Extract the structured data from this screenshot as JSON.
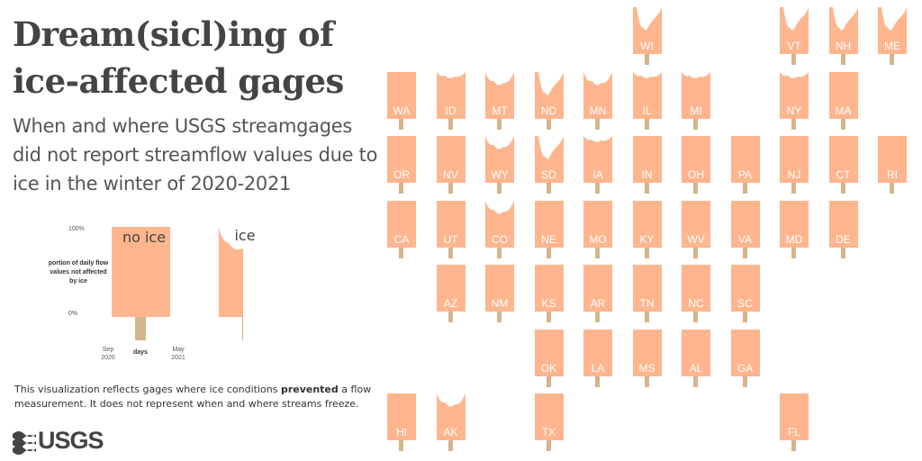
{
  "title": "Dream(sicl)ing of ice-affected gages",
  "subtitle": "When and where USGS streamgages did not report streamflow values due to ice in the winter of 2020-2021",
  "legend": {
    "no_ice_label": "no ice",
    "ice_label": "ice",
    "y_axis_label": "portion of daily flow values not affected by ice",
    "y_top": "100%",
    "y_bottom": "0%",
    "x_start": "Sep 2020",
    "x_mid": "days",
    "x_end": "May 2021"
  },
  "note": {
    "before": "This visualization reflects gages where ice conditions ",
    "bold": "prevented",
    "after": " a flow measurement. It does not represent when and where streams freeze."
  },
  "logo_text": "USGS",
  "colors": {
    "popsicle": "#FFB58D",
    "stick": "#D4B48C",
    "text": "#444444"
  },
  "states": [
    {
      "code": "WI",
      "row": 0,
      "col": 5,
      "bite": "deep"
    },
    {
      "code": "VT",
      "row": 0,
      "col": 8,
      "bite": "deep"
    },
    {
      "code": "NH",
      "row": 0,
      "col": 9,
      "bite": "deep"
    },
    {
      "code": "ME",
      "row": 0,
      "col": 10,
      "bite": "deep"
    },
    {
      "code": "WA",
      "row": 1,
      "col": 0,
      "bite": "none"
    },
    {
      "code": "ID",
      "row": 1,
      "col": 1,
      "bite": "small"
    },
    {
      "code": "MT",
      "row": 1,
      "col": 2,
      "bite": "medium"
    },
    {
      "code": "ND",
      "row": 1,
      "col": 3,
      "bite": "deep"
    },
    {
      "code": "MN",
      "row": 1,
      "col": 4,
      "bite": "medium"
    },
    {
      "code": "IL",
      "row": 1,
      "col": 5,
      "bite": "small"
    },
    {
      "code": "MI",
      "row": 1,
      "col": 6,
      "bite": "small"
    },
    {
      "code": "NY",
      "row": 1,
      "col": 8,
      "bite": "small"
    },
    {
      "code": "MA",
      "row": 1,
      "col": 9,
      "bite": "none"
    },
    {
      "code": "OR",
      "row": 2,
      "col": 0,
      "bite": "none"
    },
    {
      "code": "NV",
      "row": 2,
      "col": 1,
      "bite": "none"
    },
    {
      "code": "WY",
      "row": 2,
      "col": 2,
      "bite": "medium"
    },
    {
      "code": "SD",
      "row": 2,
      "col": 3,
      "bite": "deep"
    },
    {
      "code": "IA",
      "row": 2,
      "col": 4,
      "bite": "small"
    },
    {
      "code": "IN",
      "row": 2,
      "col": 5,
      "bite": "none"
    },
    {
      "code": "OH",
      "row": 2,
      "col": 6,
      "bite": "none"
    },
    {
      "code": "PA",
      "row": 2,
      "col": 7,
      "bite": "none"
    },
    {
      "code": "NJ",
      "row": 2,
      "col": 8,
      "bite": "none"
    },
    {
      "code": "CT",
      "row": 2,
      "col": 9,
      "bite": "none"
    },
    {
      "code": "RI",
      "row": 2,
      "col": 10,
      "bite": "none"
    },
    {
      "code": "CA",
      "row": 3,
      "col": 0,
      "bite": "none"
    },
    {
      "code": "UT",
      "row": 3,
      "col": 1,
      "bite": "none"
    },
    {
      "code": "CO",
      "row": 3,
      "col": 2,
      "bite": "medium"
    },
    {
      "code": "NE",
      "row": 3,
      "col": 3,
      "bite": "none"
    },
    {
      "code": "MO",
      "row": 3,
      "col": 4,
      "bite": "none"
    },
    {
      "code": "KY",
      "row": 3,
      "col": 5,
      "bite": "none"
    },
    {
      "code": "WV",
      "row": 3,
      "col": 6,
      "bite": "none"
    },
    {
      "code": "VA",
      "row": 3,
      "col": 7,
      "bite": "none"
    },
    {
      "code": "MD",
      "row": 3,
      "col": 8,
      "bite": "none"
    },
    {
      "code": "DE",
      "row": 3,
      "col": 9,
      "bite": "none"
    },
    {
      "code": "AZ",
      "row": 4,
      "col": 1,
      "bite": "none"
    },
    {
      "code": "NM",
      "row": 4,
      "col": 2,
      "bite": "none"
    },
    {
      "code": "KS",
      "row": 4,
      "col": 3,
      "bite": "none"
    },
    {
      "code": "AR",
      "row": 4,
      "col": 4,
      "bite": "none"
    },
    {
      "code": "TN",
      "row": 4,
      "col": 5,
      "bite": "none"
    },
    {
      "code": "NC",
      "row": 4,
      "col": 6,
      "bite": "none"
    },
    {
      "code": "SC",
      "row": 4,
      "col": 7,
      "bite": "none"
    },
    {
      "code": "OK",
      "row": 5,
      "col": 3,
      "bite": "none"
    },
    {
      "code": "LA",
      "row": 5,
      "col": 4,
      "bite": "none"
    },
    {
      "code": "MS",
      "row": 5,
      "col": 5,
      "bite": "none"
    },
    {
      "code": "AL",
      "row": 5,
      "col": 6,
      "bite": "none"
    },
    {
      "code": "GA",
      "row": 5,
      "col": 7,
      "bite": "none"
    },
    {
      "code": "HI",
      "row": 6,
      "col": 0,
      "bite": "none"
    },
    {
      "code": "AK",
      "row": 6,
      "col": 1,
      "bite": "medium"
    },
    {
      "code": "TX",
      "row": 6,
      "col": 3,
      "bite": "none"
    },
    {
      "code": "FL",
      "row": 6,
      "col": 8,
      "bite": "none"
    }
  ]
}
